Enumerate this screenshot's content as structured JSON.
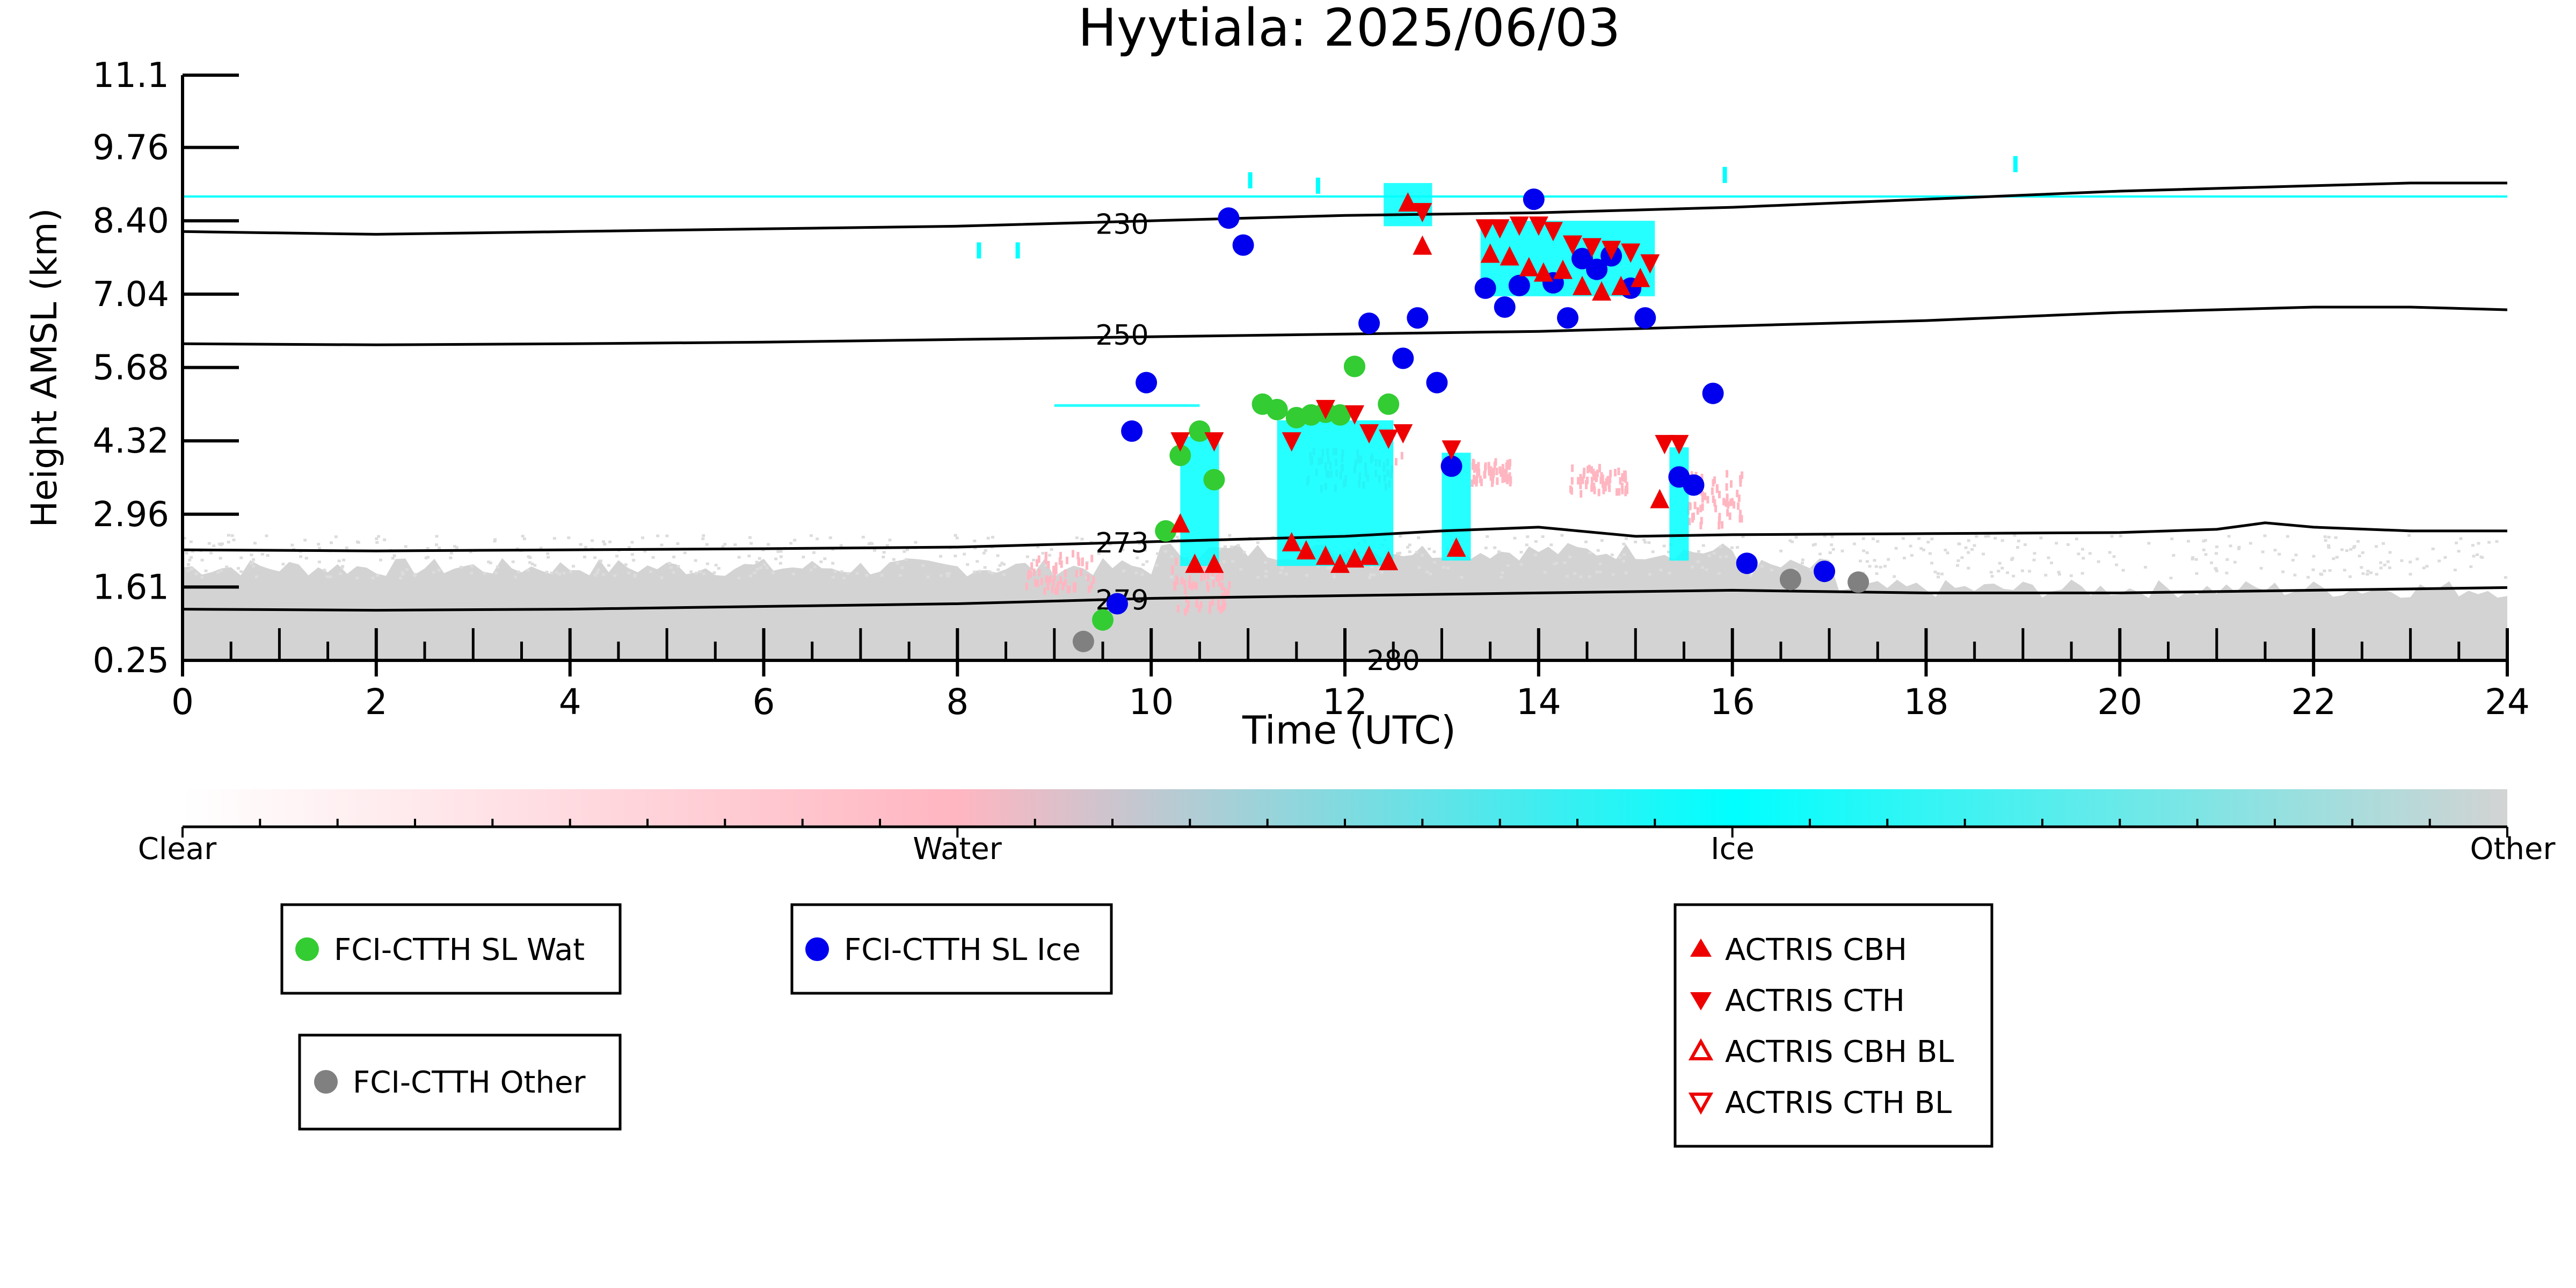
{
  "chart_data": {
    "type": "scatter",
    "title": "Hyytiala: 2025/06/03",
    "xlabel": "Time (UTC)",
    "ylabel": "Height AMSL (km)",
    "xlim": [
      0,
      24
    ],
    "ylim": [
      0.25,
      11.1
    ],
    "x_ticks": [
      "0",
      "2",
      "4",
      "6",
      "8",
      "10",
      "12",
      "14",
      "16",
      "18",
      "20",
      "22",
      "24"
    ],
    "y_ticks": [
      "0.25",
      "1.61",
      "2.96",
      "4.32",
      "5.68",
      "7.04",
      "8.40",
      "9.76",
      "11.1"
    ],
    "grid": false,
    "colorbar": {
      "labels": [
        "Clear",
        "Water",
        "Ice",
        "Other"
      ],
      "colors": [
        "#ffffff",
        "#ffb6c1",
        "#00ffff",
        "#d3d3d3"
      ]
    },
    "contours": [
      {
        "label": "230",
        "label_pos": [
          9.7,
          8.34
        ],
        "x": [
          0,
          2,
          4,
          6,
          8,
          10,
          12,
          14,
          16,
          18,
          20,
          22,
          23,
          24
        ],
        "y": [
          8.2,
          8.15,
          8.2,
          8.25,
          8.3,
          8.4,
          8.5,
          8.55,
          8.65,
          8.8,
          8.95,
          9.05,
          9.1,
          9.1
        ]
      },
      {
        "label": "250",
        "label_pos": [
          9.7,
          6.28
        ],
        "x": [
          0,
          2,
          4,
          6,
          8,
          10,
          12,
          14,
          16,
          18,
          20,
          22,
          23,
          24
        ],
        "y": [
          6.12,
          6.1,
          6.12,
          6.15,
          6.2,
          6.25,
          6.3,
          6.35,
          6.45,
          6.55,
          6.7,
          6.8,
          6.8,
          6.75
        ]
      },
      {
        "label": "273",
        "label_pos": [
          9.7,
          2.43
        ],
        "x": [
          0,
          2,
          4,
          6,
          8,
          9,
          10,
          12,
          13,
          14,
          15,
          16,
          18,
          20,
          21,
          21.5,
          22,
          23,
          24
        ],
        "y": [
          2.3,
          2.28,
          2.3,
          2.32,
          2.35,
          2.4,
          2.45,
          2.55,
          2.65,
          2.72,
          2.55,
          2.58,
          2.6,
          2.62,
          2.68,
          2.8,
          2.72,
          2.65,
          2.65
        ]
      },
      {
        "label": "279",
        "label_pos": [
          9.7,
          1.37
        ],
        "x": [
          0,
          2,
          4,
          6,
          8,
          10,
          12,
          14,
          16,
          18,
          20,
          22,
          24
        ],
        "y": [
          1.2,
          1.18,
          1.2,
          1.25,
          1.3,
          1.4,
          1.45,
          1.5,
          1.55,
          1.5,
          1.5,
          1.55,
          1.6
        ]
      },
      {
        "label": "280",
        "label_pos": [
          12.5,
          0.25
        ],
        "x": [],
        "y": []
      }
    ],
    "series": [
      {
        "name": "FCI-CTTH SL Wat",
        "marker": "circle",
        "color": "#33cc33",
        "x": [
          9.5,
          10.15,
          10.3,
          10.5,
          10.65,
          11.15,
          11.3,
          11.5,
          11.65,
          11.8,
          11.95,
          12.1,
          12.45,
          12.1
        ],
        "y": [
          1.0,
          2.65,
          4.05,
          4.5,
          3.6,
          5.0,
          4.9,
          4.75,
          4.8,
          4.85,
          4.8,
          5.7,
          5.0,
          5.7
        ]
      },
      {
        "name": "FCI-CTTH SL Ice",
        "marker": "circle",
        "color": "#0000ee",
        "x": [
          9.65,
          9.8,
          9.95,
          10.8,
          10.95,
          12.25,
          12.6,
          12.75,
          12.95,
          13.1,
          13.45,
          13.65,
          13.8,
          13.95,
          14.15,
          14.3,
          14.45,
          14.6,
          14.75,
          14.95,
          15.1,
          15.45,
          15.6,
          15.8,
          16.15,
          16.95
        ],
        "y": [
          1.3,
          4.5,
          5.4,
          8.45,
          7.95,
          6.5,
          5.85,
          6.6,
          5.4,
          3.85,
          7.15,
          6.8,
          7.2,
          8.8,
          7.25,
          6.6,
          7.7,
          7.5,
          7.75,
          7.15,
          6.6,
          3.65,
          3.5,
          5.2,
          2.05,
          1.9
        ]
      },
      {
        "name": "FCI-CTTH Other",
        "marker": "circle",
        "color": "#808080",
        "x": [
          9.3,
          16.6,
          17.3
        ],
        "y": [
          0.6,
          1.75,
          1.7
        ]
      },
      {
        "name": "ACTRIS CBH",
        "marker": "triangle-up",
        "color": "#ee0000",
        "x": [
          10.3,
          10.45,
          10.65,
          11.45,
          11.6,
          11.8,
          11.95,
          12.1,
          12.25,
          12.45,
          12.65,
          12.8,
          13.15,
          13.5,
          13.7,
          13.9,
          14.05,
          14.25,
          14.45,
          14.65,
          14.85,
          15.05,
          15.25
        ],
        "y": [
          2.8,
          2.05,
          2.05,
          2.45,
          2.3,
          2.2,
          2.05,
          2.15,
          2.2,
          2.1,
          8.75,
          7.95,
          2.35,
          7.8,
          7.75,
          7.55,
          7.45,
          7.5,
          7.2,
          7.1,
          7.2,
          7.35,
          3.25
        ]
      },
      {
        "name": "ACTRIS CTH",
        "marker": "triangle-down",
        "color": "#ee0000",
        "x": [
          10.3,
          10.65,
          11.45,
          11.8,
          12.1,
          12.25,
          12.45,
          12.6,
          12.8,
          13.1,
          13.45,
          13.6,
          13.8,
          14.0,
          14.15,
          14.35,
          14.55,
          14.75,
          14.95,
          15.15,
          15.3,
          15.45
        ],
        "y": [
          4.3,
          4.3,
          4.3,
          4.9,
          4.8,
          4.45,
          4.35,
          4.45,
          8.55,
          4.15,
          8.25,
          8.25,
          8.3,
          8.3,
          8.2,
          7.95,
          7.9,
          7.85,
          7.8,
          7.6,
          4.25,
          4.25
        ]
      },
      {
        "name": "ACTRIS CBH BL",
        "marker": "triangle-up-open",
        "color": "#ee0000",
        "x": [],
        "y": []
      },
      {
        "name": "ACTRIS CTH BL",
        "marker": "triangle-down-open",
        "color": "#ee0000",
        "x": [],
        "y": []
      }
    ]
  }
}
